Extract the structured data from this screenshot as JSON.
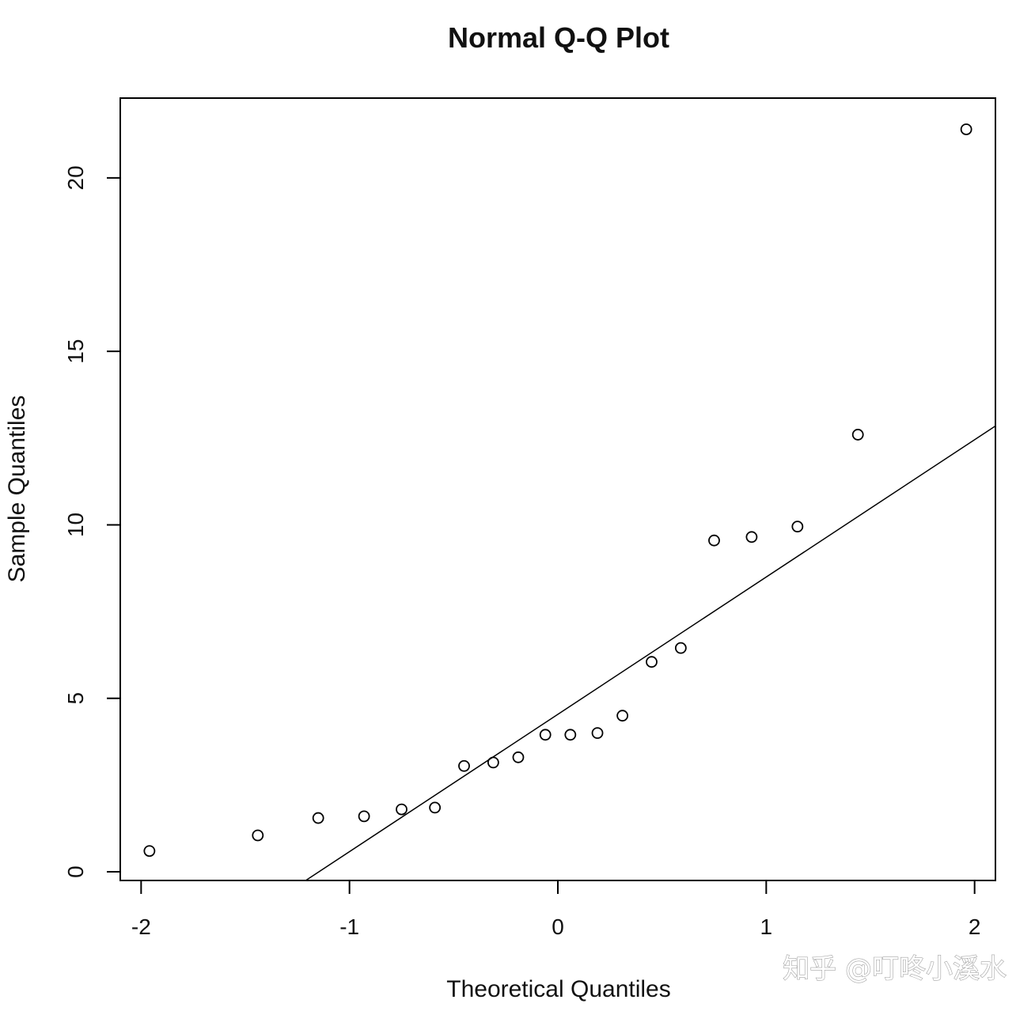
{
  "chart_data": {
    "type": "scatter",
    "title": "Normal Q-Q Plot",
    "xlabel": "Theoretical Quantiles",
    "ylabel": "Sample Quantiles",
    "xlim": [
      -2.1,
      2.1
    ],
    "ylim": [
      -0.25,
      22.3
    ],
    "x_ticks": [
      -2,
      -1,
      0,
      1,
      2
    ],
    "x_tick_labels": [
      "-2",
      "-1",
      "0",
      "1",
      "2"
    ],
    "y_ticks": [
      0,
      5,
      10,
      15,
      20
    ],
    "y_tick_labels": [
      "0",
      "5",
      "10",
      "15",
      "20"
    ],
    "grid": false,
    "legend": "none",
    "series": [
      {
        "marker": "open-circle",
        "points": [
          {
            "x": -1.96,
            "y": 0.6
          },
          {
            "x": -1.44,
            "y": 1.05
          },
          {
            "x": -1.15,
            "y": 1.55
          },
          {
            "x": -0.93,
            "y": 1.6
          },
          {
            "x": -0.75,
            "y": 1.8
          },
          {
            "x": -0.59,
            "y": 1.85
          },
          {
            "x": -0.45,
            "y": 3.05
          },
          {
            "x": -0.31,
            "y": 3.15
          },
          {
            "x": -0.19,
            "y": 3.3
          },
          {
            "x": -0.06,
            "y": 3.95
          },
          {
            "x": 0.06,
            "y": 3.95
          },
          {
            "x": 0.19,
            "y": 4.0
          },
          {
            "x": 0.31,
            "y": 4.5
          },
          {
            "x": 0.45,
            "y": 6.05
          },
          {
            "x": 0.59,
            "y": 6.45
          },
          {
            "x": 0.75,
            "y": 9.55
          },
          {
            "x": 0.93,
            "y": 9.65
          },
          {
            "x": 1.15,
            "y": 9.95
          },
          {
            "x": 1.44,
            "y": 12.6
          },
          {
            "x": 1.96,
            "y": 21.4
          }
        ]
      }
    ],
    "reference_line": {
      "x": [
        -1.21,
        2.1
      ],
      "y": [
        -0.25,
        12.85
      ]
    }
  },
  "watermark": {
    "text": "知乎 @叮咚小溪水"
  }
}
